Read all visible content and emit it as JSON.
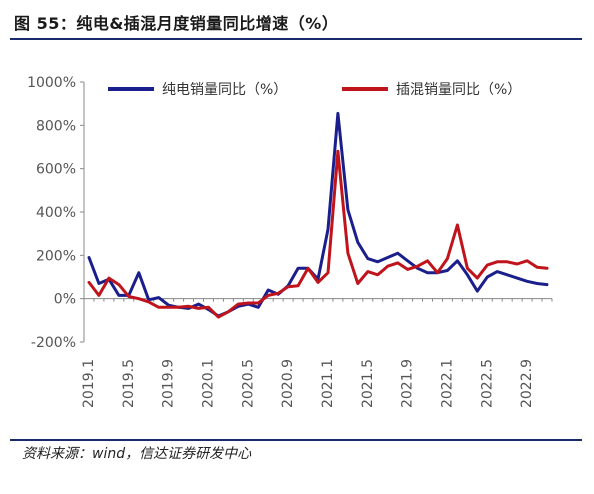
{
  "figure": {
    "title": "图 55：纯电&插混月度销量同比增速（%）",
    "source": "资料来源：wind，信达证券研发中心"
  },
  "chart_data": {
    "type": "line",
    "title": "",
    "xlabel": "",
    "ylabel": "",
    "ylim": [
      -200,
      1000
    ],
    "yticks": [
      -200,
      0,
      200,
      400,
      600,
      800,
      1000
    ],
    "ytick_labels": [
      "-200%",
      "0%",
      "200%",
      "400%",
      "600%",
      "800%",
      "1000%"
    ],
    "x": [
      "2019.1",
      "2019.2",
      "2019.3",
      "2019.4",
      "2019.5",
      "2019.6",
      "2019.7",
      "2019.8",
      "2019.9",
      "2019.10",
      "2019.11",
      "2019.12",
      "2020.1",
      "2020.2",
      "2020.3",
      "2020.4",
      "2020.5",
      "2020.6",
      "2020.7",
      "2020.8",
      "2020.9",
      "2020.10",
      "2020.11",
      "2020.12",
      "2021.1",
      "2021.2",
      "2021.3",
      "2021.4",
      "2021.5",
      "2021.6",
      "2021.7",
      "2021.8",
      "2021.9",
      "2021.10",
      "2021.11",
      "2021.12",
      "2022.1",
      "2022.2",
      "2022.3",
      "2022.4",
      "2022.5",
      "2022.6",
      "2022.7",
      "2022.8",
      "2022.9",
      "2022.10",
      "2022.11"
    ],
    "xtick_labels": [
      "2019.1",
      "2019.5",
      "2019.9",
      "2020.1",
      "2020.5",
      "2020.9",
      "2021.1",
      "2021.5",
      "2021.9",
      "2022.1",
      "2022.5",
      "2022.9"
    ],
    "legend_position": "top",
    "grid": false,
    "series": [
      {
        "name": "纯电销量同比（%）",
        "color": "#1b1f8c",
        "values": [
          190,
          70,
          90,
          15,
          15,
          120,
          -5,
          5,
          -30,
          -40,
          -45,
          -25,
          -50,
          -80,
          -60,
          -35,
          -25,
          -40,
          40,
          20,
          60,
          140,
          140,
          90,
          320,
          855,
          410,
          260,
          185,
          170,
          190,
          210,
          175,
          140,
          120,
          120,
          130,
          175,
          110,
          35,
          100,
          125,
          110,
          95,
          80,
          70,
          65
        ]
      },
      {
        "name": "插混销量同比（%）",
        "color": "#c0141c",
        "values": [
          75,
          15,
          95,
          65,
          10,
          0,
          -15,
          -40,
          -40,
          -40,
          -35,
          -45,
          -40,
          -85,
          -60,
          -25,
          -20,
          -20,
          15,
          25,
          55,
          60,
          140,
          75,
          120,
          680,
          210,
          70,
          125,
          110,
          150,
          165,
          135,
          150,
          175,
          120,
          185,
          340,
          140,
          95,
          155,
          170,
          170,
          160,
          175,
          145,
          140
        ]
      }
    ]
  }
}
